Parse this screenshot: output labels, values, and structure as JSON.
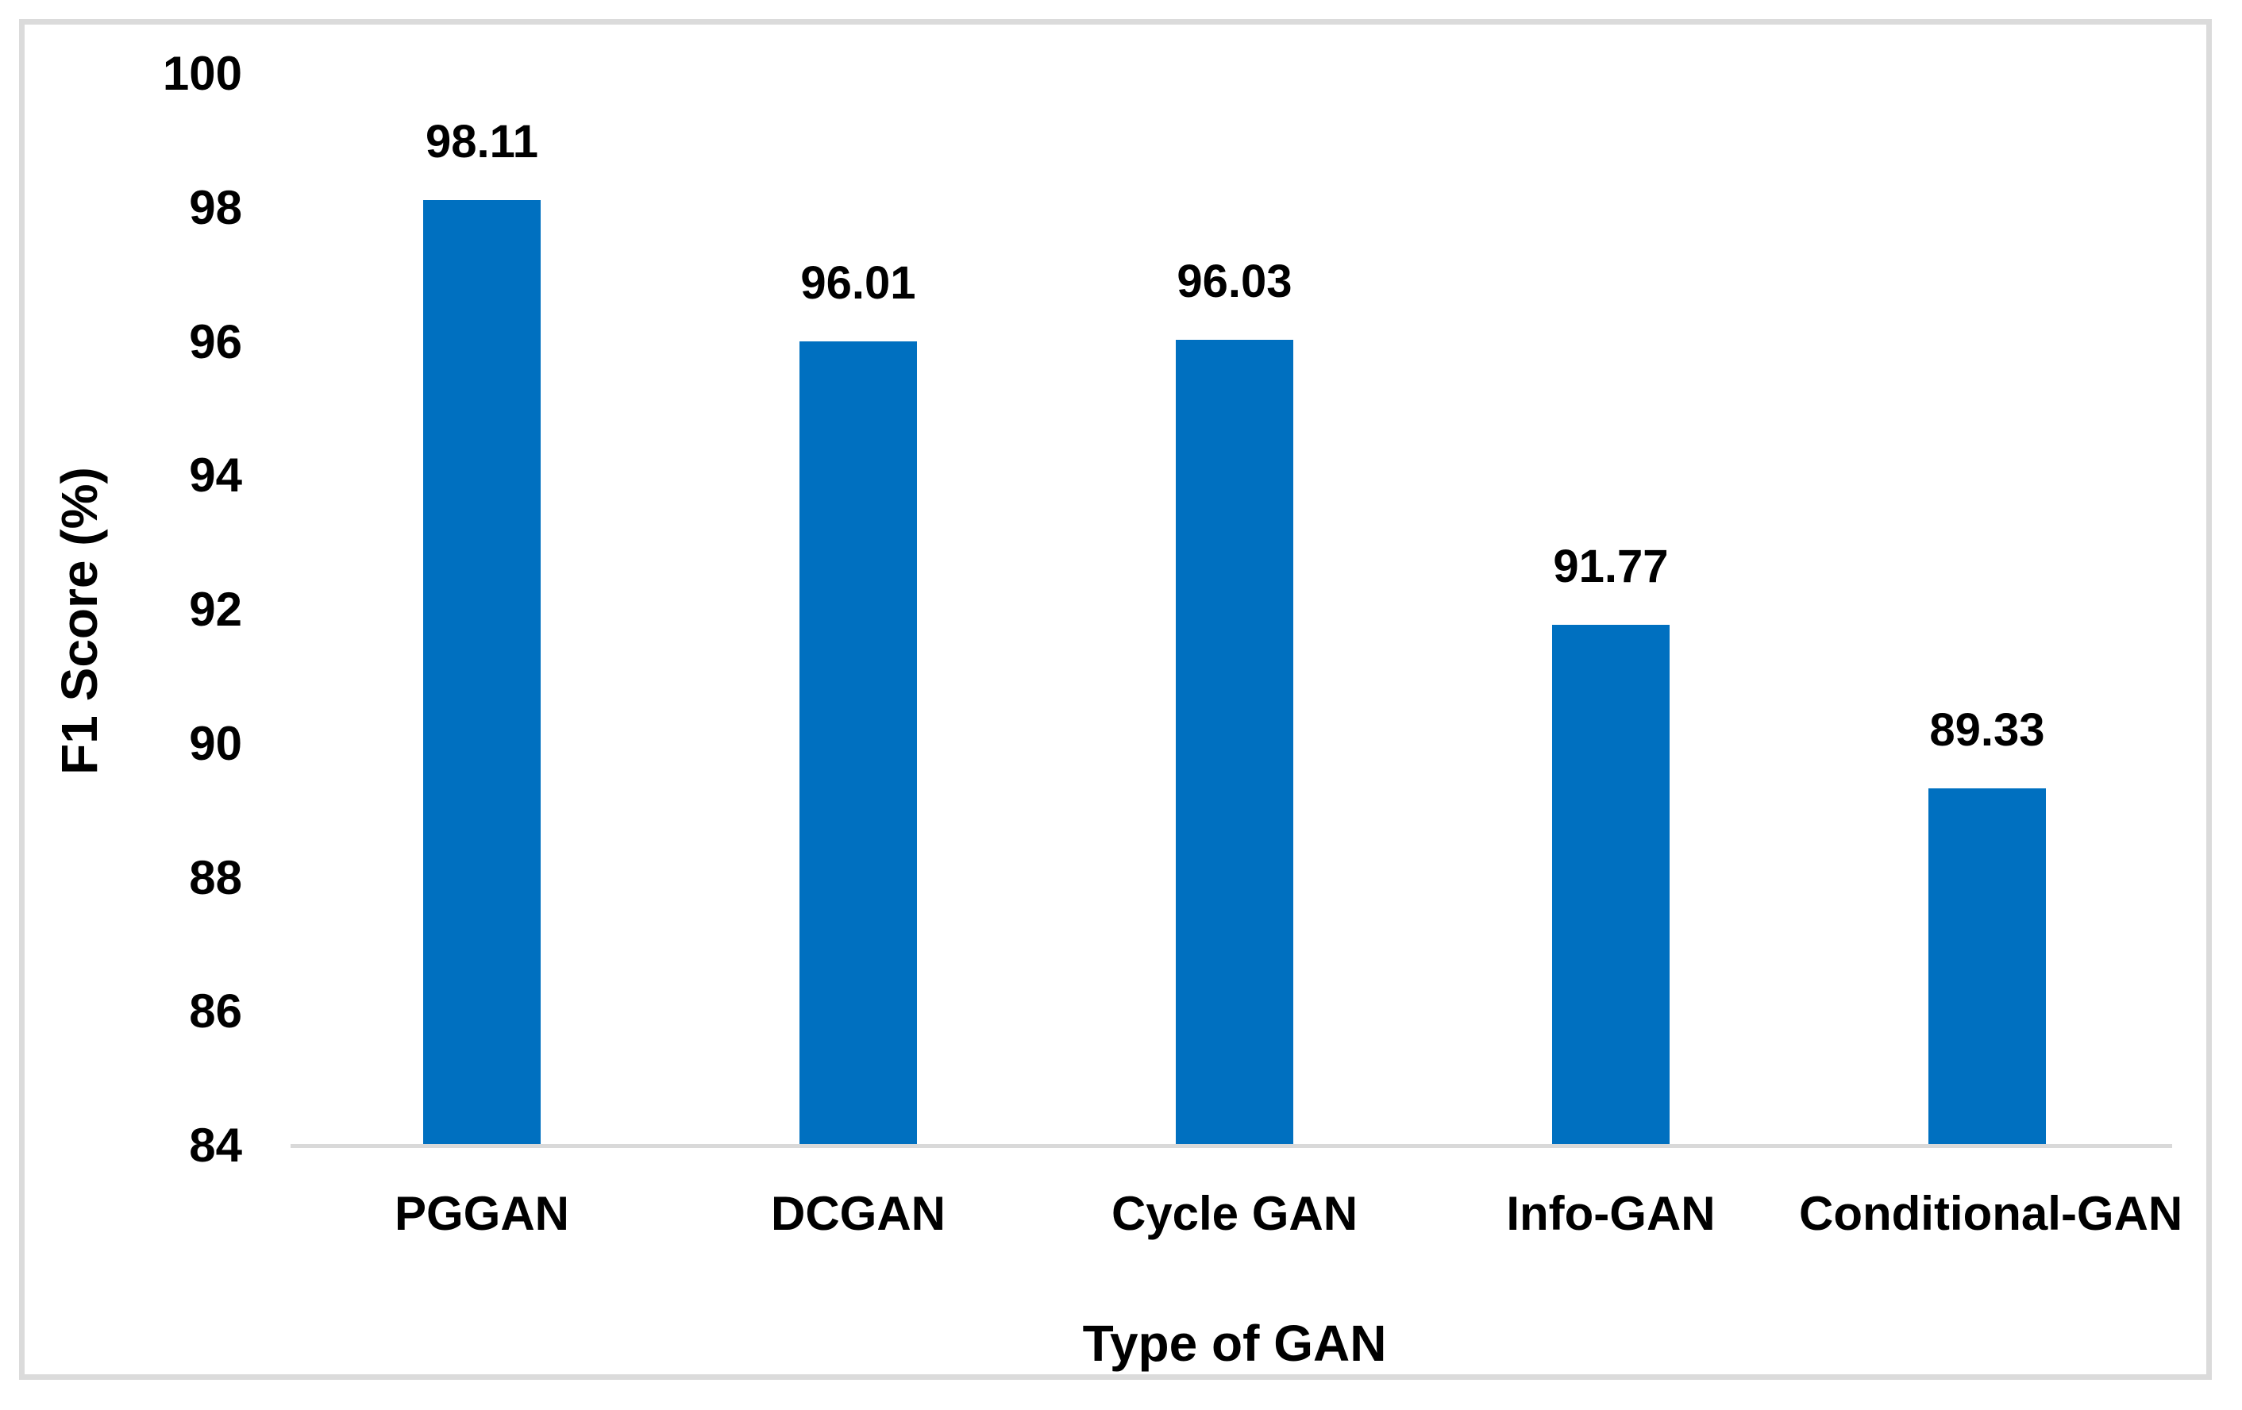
{
  "chart_data": {
    "type": "bar",
    "title": "",
    "xlabel": "Type of GAN",
    "ylabel": "F1 Score (%)",
    "categories": [
      "PGGAN",
      "DCGAN",
      "Cycle GAN",
      "Info-GAN",
      "Conditional-GAN"
    ],
    "values": [
      98.11,
      96.01,
      96.03,
      91.77,
      89.33
    ],
    "value_labels": [
      "98.11",
      "96.01",
      "96.03",
      "91.77",
      "89.33"
    ],
    "yticks": [
      100,
      98,
      96,
      94,
      92,
      90,
      88,
      86,
      84
    ],
    "ylim": [
      84,
      100
    ],
    "grid": false,
    "legend": "none",
    "bar_color": "#0070C0",
    "axis_line_color": "#D9D9D9",
    "frame_border_color": "#DBDBDB",
    "text_color": "#000000"
  }
}
